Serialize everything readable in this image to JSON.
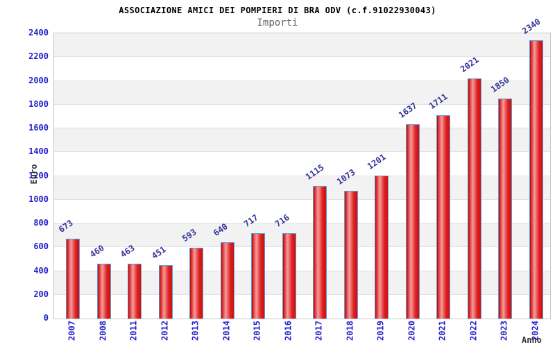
{
  "chart_data": {
    "type": "bar",
    "title": "ASSOCIAZIONE AMICI DEI POMPIERI DI BRA ODV (c.f.91022930043)",
    "subtitle": "Importi",
    "ylabel": "Euro",
    "xlabel": "Anno",
    "categories": [
      "2007",
      "2008",
      "2011",
      "2012",
      "2013",
      "2014",
      "2015",
      "2016",
      "2017",
      "2018",
      "2019",
      "2020",
      "2021",
      "2022",
      "2023",
      "2024"
    ],
    "values": [
      673,
      460,
      463,
      451,
      593,
      640,
      717,
      716,
      1115,
      1073,
      1201,
      1637,
      1711,
      2021,
      1850,
      2340
    ],
    "ylim": [
      0,
      2400
    ],
    "ytick_step": 200,
    "grid": true,
    "legend_position": "none",
    "bands": "alternating gray/white horizontal bands every 200 units",
    "colors": {
      "bar_fill": "#e02020",
      "bar_highlight": "#f29e9e",
      "bar_border": "#5f9bd8",
      "axis_tick_label": "#2222cc",
      "value_label": "#333399",
      "band_gray": "#f2f2f2",
      "gridline": "#e0e0e0",
      "title": "#000000",
      "subtitle": "#666666",
      "axis_name_label": "#333333"
    }
  }
}
